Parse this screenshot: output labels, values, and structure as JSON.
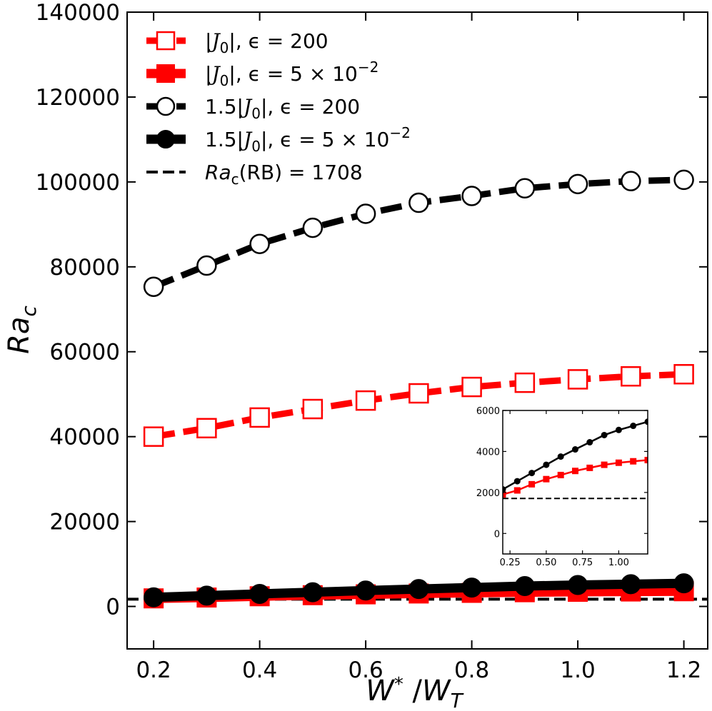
{
  "chart_data": {
    "type": "line",
    "title": "",
    "xlabel": "W* / W_T",
    "xlabel_parts": {
      "base": "W",
      "sup": "*",
      "slash": " /",
      "base2": "W",
      "sub": "T"
    },
    "ylabel": "Ra_c",
    "ylabel_parts": {
      "base": "Ra",
      "sub": "c"
    },
    "xlim": [
      0.15,
      1.245
    ],
    "ylim": [
      -10000,
      140000
    ],
    "x_ticks": [
      0.2,
      0.4,
      0.6,
      0.8,
      1.0,
      1.2
    ],
    "x_tick_labels": [
      "0.2",
      "0.4",
      "0.6",
      "0.8",
      "1.0",
      "1.2"
    ],
    "y_ticks": [
      0,
      20000,
      40000,
      60000,
      80000,
      100000,
      120000,
      140000
    ],
    "y_tick_labels": [
      "0",
      "20000",
      "40000",
      "60000",
      "80000",
      "100000",
      "120000",
      "140000"
    ],
    "legend_position": "top-left",
    "x": [
      0.2,
      0.3,
      0.4,
      0.5,
      0.6,
      0.7,
      0.8,
      0.9,
      1.0,
      1.1,
      1.2
    ],
    "series": [
      {
        "name": "|J0|, ε = 200",
        "legend_parts": {
          "lead": "|",
          "script": "J",
          "sub": "0",
          "mid": "|, ϵ = 200",
          "sup": ""
        },
        "color": "#ff0000",
        "line": "dashed",
        "marker": "square-open",
        "values": [
          40000,
          42000,
          44500,
          46500,
          48500,
          50200,
          51700,
          52700,
          53500,
          54200,
          54700
        ]
      },
      {
        "name": "|J0|, ε = 5 × 10^-2",
        "legend_parts": {
          "lead": "|",
          "script": "J",
          "sub": "0",
          "mid": "|, ϵ = 5 × 10",
          "sup": "−2"
        },
        "color": "#ff0000",
        "line": "solid",
        "marker": "square-filled",
        "values": [
          1900,
          2100,
          2400,
          2650,
          2850,
          3050,
          3200,
          3350,
          3450,
          3520,
          3580
        ]
      },
      {
        "name": "1.5|J0|, ε = 200",
        "legend_parts": {
          "lead": "1.5|",
          "script": "J",
          "sub": "0",
          "mid": "|, ϵ = 200",
          "sup": ""
        },
        "color": "#000000",
        "line": "dashed",
        "marker": "circle-open",
        "values": [
          75300,
          80300,
          85400,
          89200,
          92500,
          95100,
          96700,
          98500,
          99500,
          100200,
          100500
        ]
      },
      {
        "name": "1.5|J0|, ε = 5 × 10^-2",
        "legend_parts": {
          "lead": "1.5|",
          "script": "J",
          "sub": "0",
          "mid": "|, ϵ = 5 × 10",
          "sup": "−2"
        },
        "color": "#000000",
        "line": "solid",
        "marker": "circle-filled",
        "values": [
          2150,
          2550,
          2950,
          3350,
          3750,
          4100,
          4450,
          4800,
          5050,
          5250,
          5450
        ]
      },
      {
        "name": "Ra_c(RB) = 1708",
        "legend_parts": {
          "lead": "",
          "script": "",
          "sub": "c",
          "mid": "(RB) = 1708",
          "sup": "",
          "italic": "Ra"
        },
        "color": "#000000",
        "line": "dashed",
        "marker": "none",
        "constant": 1708
      }
    ],
    "inset": {
      "xlim": [
        0.2,
        1.2
      ],
      "ylim": [
        -1000,
        6000
      ],
      "x_ticks": [
        0.25,
        0.5,
        0.75,
        1.0
      ],
      "x_tick_labels": [
        "0.25",
        "0.50",
        "0.75",
        "1.00"
      ],
      "y_ticks": [
        0,
        2000,
        4000,
        6000
      ],
      "y_tick_labels": [
        "0",
        "2000",
        "4000",
        "6000"
      ],
      "series_shown": [
        "|J0|, ε = 5 × 10^-2",
        "1.5|J0|, ε = 5 × 10^-2",
        "Ra_c(RB) = 1708"
      ]
    }
  }
}
